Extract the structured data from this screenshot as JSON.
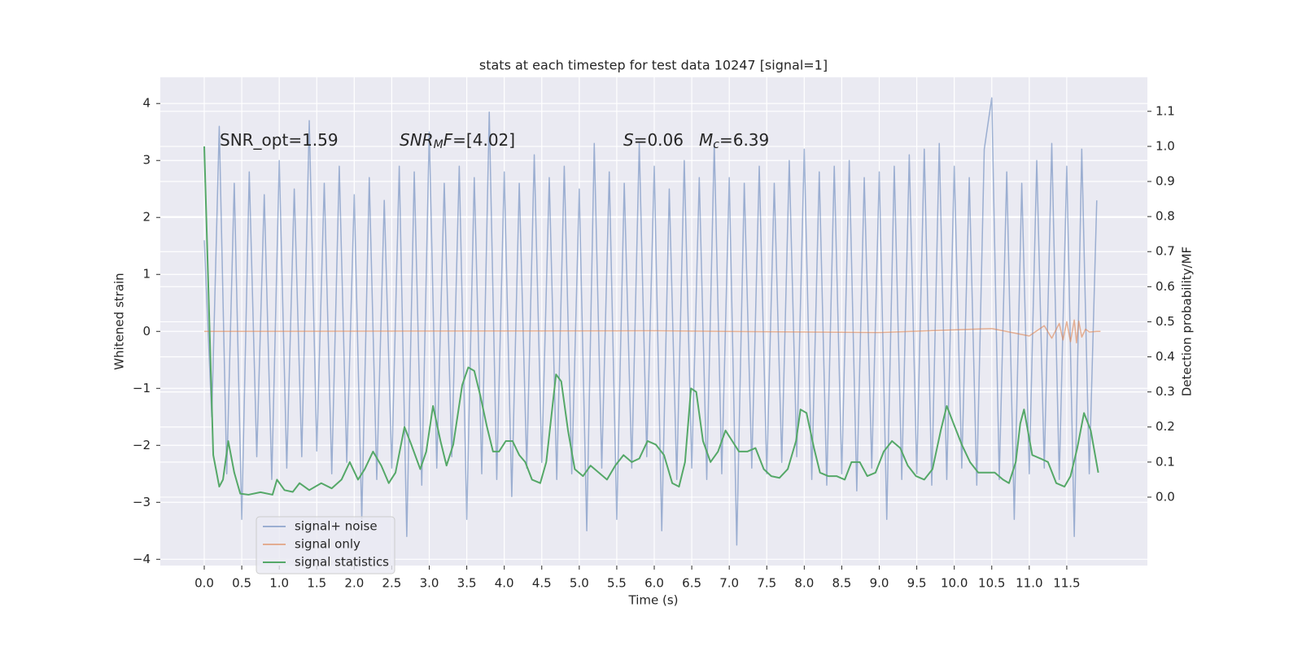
{
  "chart_data": {
    "type": "line",
    "title": "stats at each timestep for test data 10247 [signal=1]",
    "x_label": "Time (s)",
    "y_label": "Whitened strain",
    "y2_label": "Detection probability/MF",
    "xlim": [
      -0.586,
      12.575
    ],
    "ylim": [
      -4.11,
      4.46
    ],
    "y2lim": [
      -0.195,
      1.197
    ],
    "xticks": [
      {
        "value": 0,
        "label": "0.0"
      },
      0.5,
      {
        "value": 1,
        "label": "1.0"
      },
      1.5,
      {
        "value": 2,
        "label": "2.0"
      },
      2.5,
      {
        "value": 3,
        "label": "3.0"
      },
      3.5,
      {
        "value": 4,
        "label": "4.0"
      },
      4.5,
      {
        "value": 5,
        "label": "5.0"
      },
      5.5,
      {
        "value": 6,
        "label": "6.0"
      },
      6.5,
      {
        "value": 7,
        "label": "7.0"
      },
      7.5,
      {
        "value": 8,
        "label": "8.0"
      },
      8.5,
      {
        "value": 9,
        "label": "9.0"
      },
      9.5,
      {
        "value": 10,
        "label": "10.0"
      },
      10.5,
      {
        "value": 11,
        "label": "11.0"
      },
      11.5
    ],
    "yticks": [
      {
        "value": -4,
        "label": "−4"
      },
      {
        "value": -3,
        "label": "−3"
      },
      {
        "value": -2,
        "label": "−2"
      },
      {
        "value": -1,
        "label": "−1"
      },
      0,
      1,
      2,
      3,
      4
    ],
    "y2ticks": [
      {
        "value": 0,
        "label": "0.0"
      },
      0.1,
      0.2,
      0.3,
      0.4,
      0.5,
      0.6,
      0.7,
      0.8,
      0.9,
      {
        "value": 1,
        "label": "1.0"
      },
      1.1
    ],
    "grid": true,
    "legend": "lower left",
    "annotations": [
      [
        {
          "text": "SNR_opt=1.59",
          "style": "normal"
        }
      ],
      [
        {
          "text": "SNR",
          "style": "italic"
        },
        {
          "text": "M",
          "style": "italic-sub"
        },
        {
          "text": "F",
          "style": "italic"
        },
        {
          "text": "=[4.02]",
          "style": "normal"
        }
      ],
      [
        {
          "text": "S",
          "style": "italic"
        },
        {
          "text": "=0.06",
          "style": "normal"
        }
      ],
      [
        {
          "text": "M",
          "style": "italic"
        },
        {
          "text": "c",
          "style": "italic-sub"
        },
        {
          "text": "=6.39",
          "style": "normal"
        }
      ]
    ],
    "series": [
      {
        "name": "signal+ noise",
        "color": "#4c72b0",
        "opacity": 0.5,
        "x": [
          0,
          0.1,
          0.2,
          0.3,
          0.4,
          0.5,
          0.6,
          0.7,
          0.8,
          0.9,
          1,
          1.1,
          1.2,
          1.3,
          1.4,
          1.5,
          1.6,
          1.7,
          1.8,
          1.9,
          2,
          2.1,
          2.2,
          2.3,
          2.4,
          2.5,
          2.6,
          2.7,
          2.8,
          2.9,
          3,
          3.1,
          3.2,
          3.3,
          3.4,
          3.5,
          3.6,
          3.7,
          3.8,
          3.9,
          4,
          4.1,
          4.2,
          4.3,
          4.4,
          4.5,
          4.6,
          4.7,
          4.8,
          4.9,
          5,
          5.1,
          5.2,
          5.3,
          5.4,
          5.5,
          5.6,
          5.7,
          5.8,
          5.9,
          6,
          6.1,
          6.2,
          6.3,
          6.4,
          6.5,
          6.6,
          6.7,
          6.8,
          6.9,
          7,
          7.1,
          7.2,
          7.3,
          7.4,
          7.5,
          7.6,
          7.7,
          7.8,
          7.9,
          8,
          8.1,
          8.2,
          8.3,
          8.4,
          8.5,
          8.6,
          8.7,
          8.8,
          8.9,
          9,
          9.1,
          9.2,
          9.3,
          9.4,
          9.5,
          9.6,
          9.7,
          9.8,
          9.9,
          10,
          10.1,
          10.2,
          10.3,
          10.4,
          10.5,
          10.6,
          10.7,
          10.8,
          10.9,
          11,
          11.1,
          11.2,
          11.3,
          11.4,
          11.5,
          11.6,
          11.7,
          11.8,
          11.9
        ],
        "values": [
          1.6,
          -1.5,
          3.6,
          -2.5,
          2.6,
          -3.3,
          2.8,
          -2.2,
          2.4,
          -2.6,
          3.0,
          -2.4,
          2.5,
          -2.2,
          3.7,
          -2.1,
          2.6,
          -2.5,
          2.9,
          -2.3,
          2.4,
          -3.3,
          2.7,
          -2.6,
          2.3,
          -2.4,
          2.9,
          -3.6,
          2.8,
          -2.7,
          3.5,
          -2.4,
          2.6,
          -2.2,
          2.9,
          -3.3,
          2.7,
          -2.5,
          3.85,
          -2.6,
          2.8,
          -2.9,
          2.6,
          -2.4,
          3.1,
          -2.3,
          2.7,
          -2.6,
          2.9,
          -2.5,
          2.5,
          -3.5,
          3.3,
          -2.4,
          2.8,
          -3.3,
          2.6,
          -2.4,
          3.3,
          -2.2,
          2.9,
          -3.5,
          2.5,
          -2.6,
          3.0,
          -2.4,
          2.7,
          -2.6,
          3.3,
          -2.5,
          2.7,
          -3.75,
          2.6,
          -2.4,
          2.9,
          -2.5,
          2.6,
          -2.3,
          3.0,
          -2.2,
          3.2,
          -2.6,
          2.8,
          -2.7,
          2.9,
          -2.5,
          3.0,
          -2.8,
          2.7,
          -2.4,
          2.8,
          -3.3,
          2.9,
          -2.6,
          3.1,
          -2.5,
          3.2,
          -2.7,
          3.3,
          -2.6,
          2.9,
          -2.4,
          2.7,
          -2.7,
          3.2,
          4.1,
          -2.6,
          2.8,
          -3.3,
          2.6,
          -2.5,
          3.0,
          -2.4,
          3.3,
          -2.6,
          2.9,
          -3.6,
          3.2,
          -2.5,
          2.3
        ]
      },
      {
        "name": "signal only",
        "color": "#dd8452",
        "opacity": 0.6,
        "x": [
          0,
          6,
          9,
          10.5,
          11,
          11.2,
          11.3,
          11.4,
          11.45,
          11.5,
          11.55,
          11.6,
          11.63,
          11.66,
          11.7,
          11.75,
          11.8,
          11.9,
          11.95
        ],
        "values": [
          0,
          0.01,
          -0.02,
          0.05,
          -0.08,
          0.1,
          -0.12,
          0.14,
          -0.15,
          0.17,
          -0.18,
          0.2,
          -0.2,
          0.18,
          -0.1,
          0.04,
          -0.01,
          0,
          0
        ]
      },
      {
        "name": "signal statistics",
        "color": "#55a868",
        "opacity": 1,
        "axis": "y2",
        "x": [
          0,
          0.12,
          0.2,
          0.25,
          0.32,
          0.4,
          0.48,
          0.59,
          0.75,
          0.91,
          0.97,
          1.07,
          1.18,
          1.27,
          1.4,
          1.56,
          1.7,
          1.83,
          1.94,
          2.05,
          2.14,
          2.25,
          2.36,
          2.46,
          2.55,
          2.67,
          2.76,
          2.88,
          2.96,
          3.05,
          3.15,
          3.23,
          3.32,
          3.44,
          3.52,
          3.6,
          3.68,
          3.77,
          3.85,
          3.93,
          4.02,
          4.11,
          4.2,
          4.28,
          4.37,
          4.48,
          4.56,
          4.69,
          4.76,
          4.85,
          4.94,
          5.05,
          5.15,
          5.26,
          5.37,
          5.48,
          5.59,
          5.7,
          5.8,
          5.91,
          6.02,
          6.13,
          6.24,
          6.33,
          6.41,
          6.49,
          6.56,
          6.65,
          6.75,
          6.85,
          6.95,
          7.04,
          7.13,
          7.24,
          7.35,
          7.46,
          7.56,
          7.67,
          7.78,
          7.89,
          7.95,
          8.03,
          8.13,
          8.21,
          8.32,
          8.43,
          8.54,
          8.63,
          8.74,
          8.84,
          8.95,
          9.06,
          9.17,
          9.28,
          9.38,
          9.49,
          9.6,
          9.71,
          9.82,
          9.9,
          9.99,
          10.1,
          10.21,
          10.32,
          10.43,
          10.54,
          10.65,
          10.73,
          10.82,
          10.88,
          10.93,
          11.04,
          11.15,
          11.25,
          11.36,
          11.47,
          11.55,
          11.64,
          11.73,
          11.82,
          11.92
        ],
        "values": [
          1.0,
          0.12,
          0.03,
          0.05,
          0.16,
          0.07,
          0.01,
          0.007,
          0.014,
          0.007,
          0.05,
          0.02,
          0.015,
          0.04,
          0.02,
          0.04,
          0.025,
          0.05,
          0.1,
          0.05,
          0.08,
          0.13,
          0.09,
          0.04,
          0.07,
          0.2,
          0.15,
          0.08,
          0.13,
          0.26,
          0.16,
          0.09,
          0.15,
          0.32,
          0.37,
          0.36,
          0.29,
          0.2,
          0.13,
          0.13,
          0.16,
          0.16,
          0.12,
          0.1,
          0.05,
          0.04,
          0.1,
          0.35,
          0.33,
          0.19,
          0.08,
          0.06,
          0.09,
          0.07,
          0.05,
          0.09,
          0.12,
          0.1,
          0.11,
          0.16,
          0.15,
          0.12,
          0.04,
          0.03,
          0.1,
          0.31,
          0.3,
          0.16,
          0.1,
          0.13,
          0.19,
          0.16,
          0.13,
          0.13,
          0.14,
          0.08,
          0.06,
          0.055,
          0.08,
          0.16,
          0.25,
          0.24,
          0.14,
          0.07,
          0.06,
          0.06,
          0.05,
          0.1,
          0.1,
          0.06,
          0.07,
          0.13,
          0.16,
          0.14,
          0.09,
          0.06,
          0.05,
          0.08,
          0.19,
          0.26,
          0.21,
          0.15,
          0.1,
          0.07,
          0.07,
          0.07,
          0.05,
          0.04,
          0.1,
          0.21,
          0.25,
          0.12,
          0.11,
          0.1,
          0.04,
          0.03,
          0.06,
          0.14,
          0.24,
          0.19,
          0.07
        ]
      }
    ]
  }
}
